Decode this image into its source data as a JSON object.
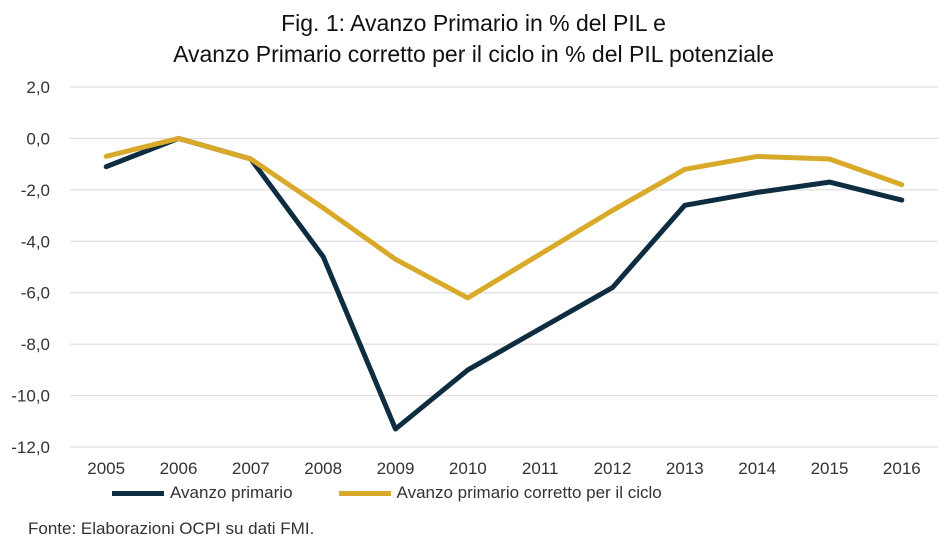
{
  "chart_data": {
    "type": "line",
    "title": "Fig. 1: Avanzo Primario in % del PIL e",
    "subtitle": "Avanzo Primario corretto per il ciclo in % del PIL potenziale",
    "xlabel": "",
    "ylabel": "",
    "categories": [
      "2005",
      "2006",
      "2007",
      "2008",
      "2009",
      "2010",
      "2011",
      "2012",
      "2013",
      "2014",
      "2015",
      "2016"
    ],
    "y_ticks": [
      "2,0",
      "0,0",
      "-2,0",
      "-4,0",
      "-6,0",
      "-8,0",
      "-10,0",
      "-12,0"
    ],
    "ylim": [
      -12,
      2
    ],
    "grid": true,
    "legend_position": "bottom",
    "series": [
      {
        "name": "Avanzo primario",
        "color": "#0e2d40",
        "values": [
          -1.1,
          0.0,
          -0.8,
          -4.6,
          -11.3,
          -9.0,
          -7.4,
          -5.8,
          -2.6,
          -2.1,
          -1.7,
          -2.4
        ]
      },
      {
        "name": "Avanzo primario corretto per il ciclo",
        "color": "#d9aa2a",
        "values": [
          -0.7,
          0.0,
          -0.8,
          -2.7,
          -4.7,
          -6.2,
          -4.5,
          -2.8,
          -1.2,
          -0.7,
          -0.8,
          -1.8
        ]
      }
    ]
  },
  "source_note": "Fonte: Elaborazioni OCPI su dati FMI.",
  "colors": {
    "grid": "#d9d9d9"
  }
}
